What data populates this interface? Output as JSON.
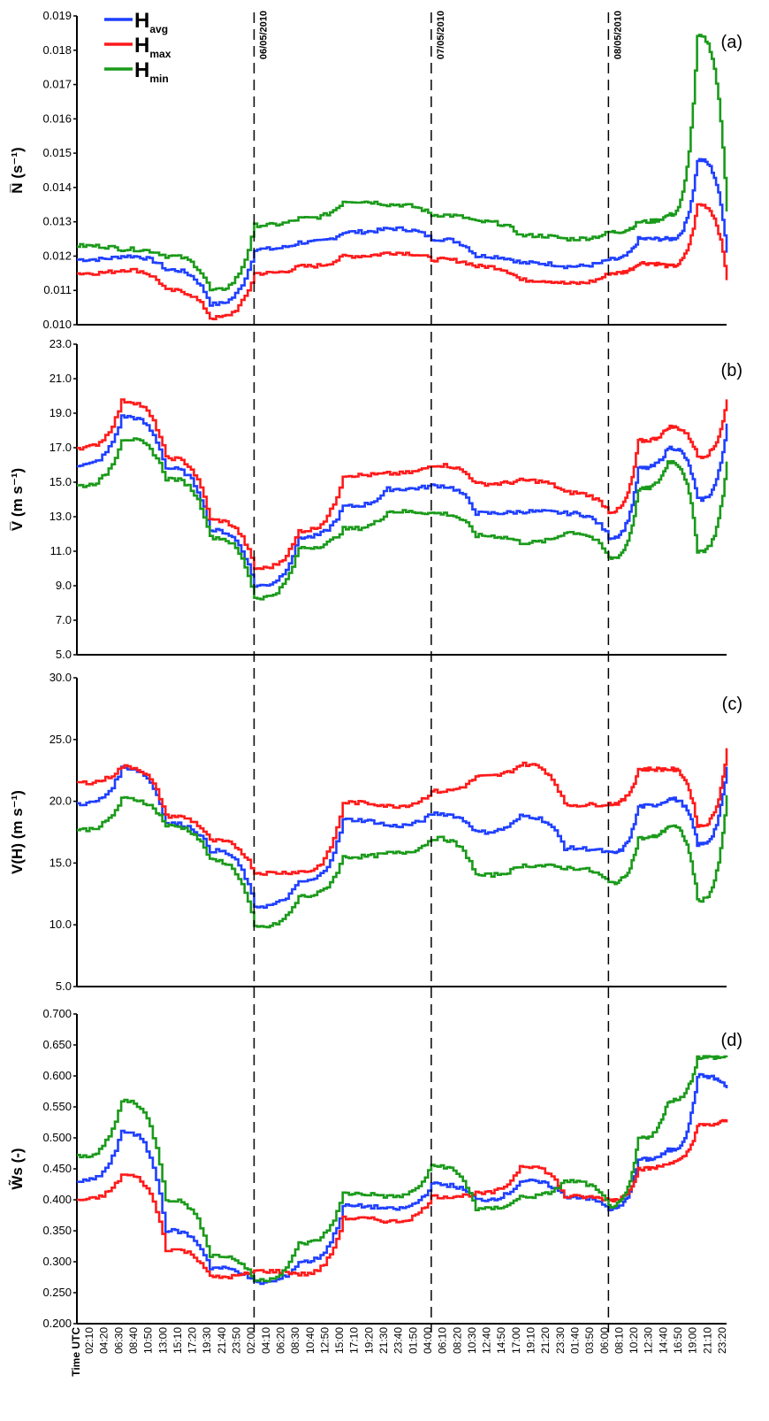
{
  "chart_data": [
    {
      "type": "line",
      "panel_label": "(a)",
      "ylabel": "N̅ (s⁻¹)",
      "ylim": [
        0.01,
        0.019
      ],
      "yticks": [
        0.01,
        0.011,
        0.012,
        0.013,
        0.014,
        0.015,
        0.016,
        0.017,
        0.018,
        0.019
      ],
      "ytick_labels": [
        "0.010",
        "0.011",
        "0.012",
        "0.013",
        "0.014",
        "0.015",
        "0.016",
        "0.017",
        "0.018",
        "0.019"
      ],
      "x_hours": [
        0,
        6,
        12,
        18,
        24,
        30,
        36,
        42,
        48,
        54,
        60,
        66,
        72,
        76,
        80,
        84,
        88
      ],
      "series": [
        {
          "name": "Havg",
          "color": "#1f3fff",
          "values": [
            0.0119,
            0.012,
            0.0116,
            0.0106,
            0.0122,
            0.0124,
            0.0127,
            0.0128,
            0.0125,
            0.012,
            0.0118,
            0.0117,
            0.0119,
            0.0125,
            0.0125,
            0.0148,
            0.0121
          ]
        },
        {
          "name": "Hmax",
          "color": "#ff1a1a",
          "values": [
            0.0115,
            0.0116,
            0.011,
            0.0102,
            0.0115,
            0.0117,
            0.012,
            0.0121,
            0.0119,
            0.0117,
            0.0113,
            0.0112,
            0.0115,
            0.0118,
            0.0117,
            0.0135,
            0.0113
          ]
        },
        {
          "name": "Hmin",
          "color": "#1a9a1a",
          "values": [
            0.0123,
            0.0122,
            0.012,
            0.011,
            0.0129,
            0.0131,
            0.0136,
            0.0135,
            0.0132,
            0.013,
            0.0126,
            0.0125,
            0.0127,
            0.013,
            0.0132,
            0.0184,
            0.0133
          ]
        }
      ]
    },
    {
      "type": "line",
      "panel_label": "(b)",
      "ylabel": "V̅ (m s⁻¹)",
      "ylim": [
        5.0,
        23.0
      ],
      "yticks": [
        5,
        7,
        9,
        11,
        13,
        15,
        17,
        19,
        21,
        23
      ],
      "ytick_labels": [
        "5.0",
        "7.0",
        "9.0",
        "11.0",
        "13.0",
        "15.0",
        "17.0",
        "19.0",
        "21.0",
        "23.0"
      ],
      "x_hours": [
        0,
        6,
        12,
        18,
        24,
        30,
        36,
        42,
        48,
        54,
        60,
        66,
        72,
        76,
        80,
        84,
        88
      ],
      "series": [
        {
          "name": "Havg",
          "color": "#1f3fff",
          "values": [
            16.0,
            18.8,
            15.8,
            12.2,
            9.0,
            11.8,
            13.6,
            14.6,
            14.8,
            13.2,
            13.3,
            13.2,
            11.8,
            15.8,
            17.0,
            14.0,
            18.4
          ]
        },
        {
          "name": "Hmax",
          "color": "#ff1a1a",
          "values": [
            17.0,
            19.7,
            16.4,
            12.8,
            10.0,
            12.2,
            15.4,
            15.5,
            16.0,
            14.9,
            15.1,
            14.4,
            13.3,
            17.4,
            18.2,
            16.5,
            19.8
          ]
        },
        {
          "name": "Hmin",
          "color": "#1a9a1a",
          "values": [
            14.8,
            17.5,
            15.2,
            11.8,
            8.3,
            11.2,
            12.3,
            13.3,
            13.2,
            11.9,
            11.5,
            12.1,
            10.6,
            14.6,
            16.2,
            11.0,
            16.2
          ]
        }
      ]
    },
    {
      "type": "line",
      "panel_label": "(c)",
      "ylabel": "V(H) (m s⁻¹)",
      "ylim": [
        5.0,
        30.0
      ],
      "yticks": [
        5,
        10,
        15,
        20,
        25,
        30
      ],
      "ytick_labels": [
        "5.0",
        "10.0",
        "15.0",
        "20.0",
        "25.0",
        "30.0"
      ],
      "x_hours": [
        0,
        6,
        12,
        18,
        24,
        30,
        36,
        42,
        48,
        54,
        60,
        66,
        72,
        76,
        80,
        84,
        88
      ],
      "series": [
        {
          "name": "Havg",
          "color": "#1f3fff",
          "values": [
            19.8,
            22.7,
            18.2,
            16.0,
            11.5,
            13.5,
            18.5,
            18.0,
            19.0,
            17.5,
            18.8,
            16.2,
            15.8,
            19.6,
            20.2,
            16.5,
            22.8
          ]
        },
        {
          "name": "Hmax",
          "color": "#ff1a1a",
          "values": [
            21.5,
            22.8,
            18.8,
            16.8,
            14.2,
            14.3,
            19.9,
            19.6,
            20.8,
            22.0,
            23.0,
            19.7,
            19.8,
            22.6,
            22.6,
            18.0,
            24.3
          ]
        },
        {
          "name": "Hmin",
          "color": "#1a9a1a",
          "values": [
            17.7,
            20.2,
            18.0,
            15.2,
            9.8,
            12.3,
            15.5,
            15.8,
            17.0,
            14.0,
            14.8,
            14.6,
            13.4,
            17.0,
            18.0,
            12.0,
            20.5
          ]
        }
      ]
    },
    {
      "type": "line",
      "panel_label": "(d)",
      "ylabel": "W̃s (-)",
      "ylim": [
        0.2,
        0.7
      ],
      "yticks": [
        0.2,
        0.25,
        0.3,
        0.35,
        0.4,
        0.45,
        0.5,
        0.55,
        0.6,
        0.65,
        0.7
      ],
      "ytick_labels": [
        "0.200",
        "0.250",
        "0.300",
        "0.350",
        "0.400",
        "0.450",
        "0.500",
        "0.550",
        "0.600",
        "0.650",
        "0.700"
      ],
      "x_hours": [
        0,
        6,
        12,
        18,
        24,
        30,
        36,
        42,
        48,
        54,
        60,
        66,
        72,
        76,
        80,
        84,
        88
      ],
      "series": [
        {
          "name": "Havg",
          "color": "#1f3fff",
          "values": [
            0.43,
            0.51,
            0.35,
            0.29,
            0.266,
            0.3,
            0.39,
            0.385,
            0.425,
            0.4,
            0.43,
            0.405,
            0.385,
            0.465,
            0.48,
            0.6,
            0.58
          ]
        },
        {
          "name": "Hmax",
          "color": "#ff1a1a",
          "values": [
            0.4,
            0.44,
            0.32,
            0.275,
            0.285,
            0.28,
            0.37,
            0.365,
            0.405,
            0.41,
            0.455,
            0.405,
            0.4,
            0.45,
            0.46,
            0.52,
            0.53
          ]
        },
        {
          "name": "Hmin",
          "color": "#1a9a1a",
          "values": [
            0.47,
            0.56,
            0.4,
            0.31,
            0.27,
            0.33,
            0.41,
            0.405,
            0.455,
            0.385,
            0.405,
            0.43,
            0.39,
            0.5,
            0.56,
            0.63,
            0.63
          ]
        }
      ]
    }
  ],
  "legend": [
    {
      "main": "H",
      "sub": "avg",
      "color": "#1f3fff"
    },
    {
      "main": "H",
      "sub": "max",
      "color": "#ff1a1a"
    },
    {
      "main": "H",
      "sub": "min",
      "color": "#1a9a1a"
    }
  ],
  "date_markers": [
    {
      "label": "06/05/2010",
      "x_hour": 24
    },
    {
      "label": "07/05/2010",
      "x_hour": 48
    },
    {
      "label": "08/05/2010",
      "x_hour": 72
    }
  ],
  "x_axis": {
    "title": "Time UTC",
    "tick_labels": [
      "02:10",
      "04:20",
      "06:30",
      "08:40",
      "10:50",
      "13:00",
      "15:10",
      "17:20",
      "19:30",
      "21:40",
      "23:50",
      "02:00",
      "04:10",
      "06:20",
      "08:30",
      "10:40",
      "12:50",
      "15:00",
      "17:10",
      "19:20",
      "21:30",
      "23:40",
      "01:50",
      "04:00",
      "06:10",
      "08:20",
      "10:30",
      "12:40",
      "14:50",
      "17:00",
      "19:10",
      "21:20",
      "23:30",
      "01:40",
      "03:50",
      "06:00",
      "08:10",
      "10:20",
      "12:30",
      "14:40",
      "16:50",
      "19:00",
      "21:10",
      "23:20"
    ]
  },
  "colors": {
    "avg": "#1f3fff",
    "max": "#ff1a1a",
    "min": "#1a9a1a",
    "axis": "#000000"
  }
}
